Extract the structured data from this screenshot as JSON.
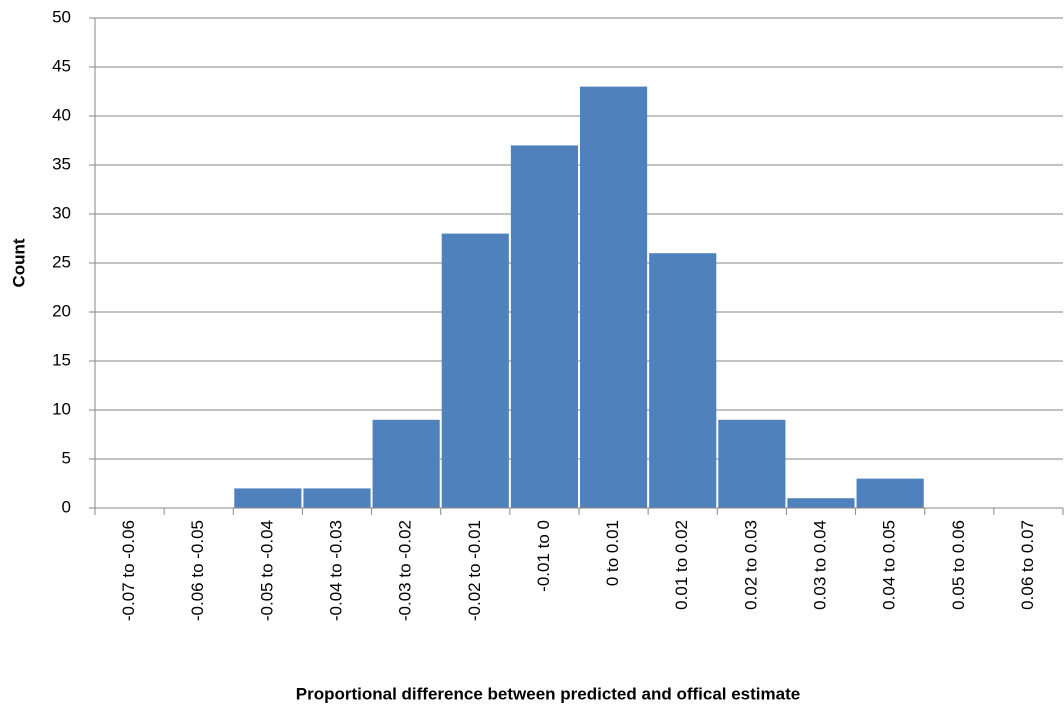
{
  "chart_data": {
    "type": "bar",
    "x_label": "Proportional difference between predicted and offical estimate",
    "y_label": "Count",
    "categories": [
      "-0.07 to -0.06",
      "-0.06 to -0.05",
      "-0.05 to -0.04",
      "-0.04 to -0.03",
      "-0.03 to -0.02",
      "-0.02 to -0.01",
      "-0.01 to 0",
      "0 to 0.01",
      "0.01 to 0.02",
      "0.02 to 0.03",
      "0.03 to 0.04",
      "0.04 to 0.05",
      "0.05 to 0.06",
      "0.06 to 0.07"
    ],
    "values": [
      0,
      0,
      2,
      2,
      9,
      28,
      37,
      43,
      26,
      9,
      1,
      3,
      0,
      0
    ],
    "color": "#4f81bd",
    "ylim": [
      0,
      50
    ],
    "yticks": [
      0,
      5,
      10,
      15,
      20,
      25,
      30,
      35,
      40,
      45,
      50
    ],
    "grid": true
  }
}
